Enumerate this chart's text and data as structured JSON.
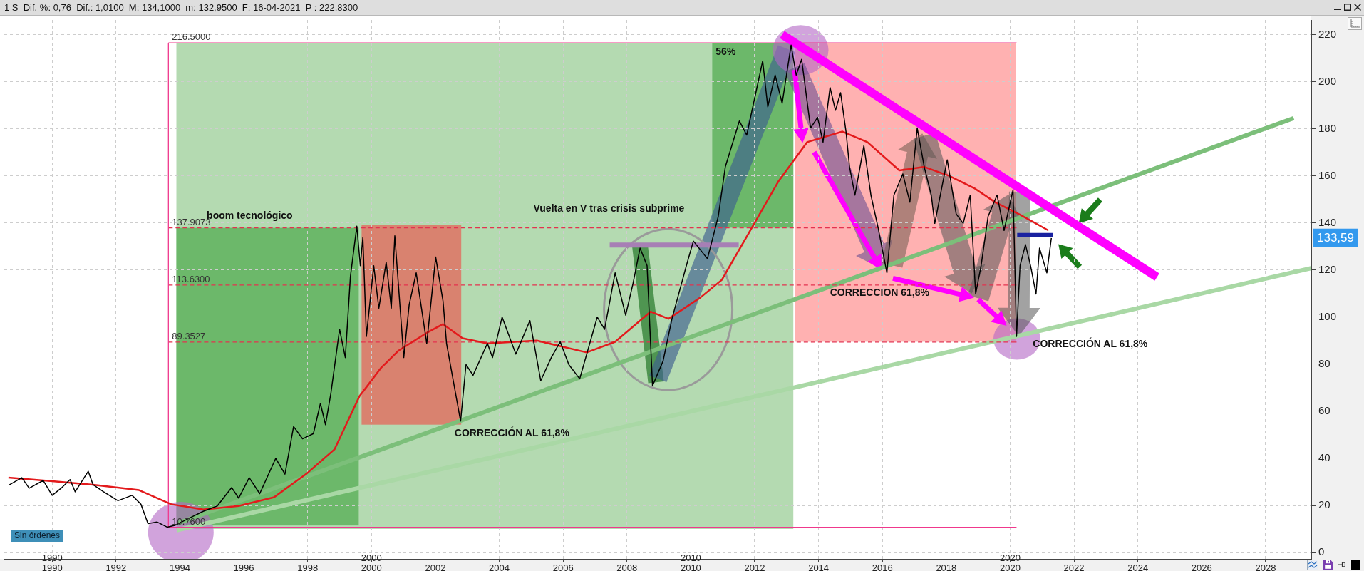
{
  "chart_data": {
    "type": "line",
    "title": "1 S  Dif. %: 0,76  Dif.: 1,0100  M: 134,1000  m: 132,9500  F: 16-04-2021  P : 222,8300",
    "xlim": [
      1988.5,
      2029.43
    ],
    "xticks": [
      1990,
      1992,
      1994,
      1996,
      1998,
      2000,
      2002,
      2004,
      2006,
      2008,
      2010,
      2012,
      2014,
      2016,
      2018,
      2020,
      2022,
      2024,
      2026,
      2028
    ],
    "x2lim": [
      1988.5,
      2029.43
    ],
    "x2ticks": [
      1990,
      2000,
      2010,
      2020
    ],
    "ylim": [
      -2.7,
      226.2
    ],
    "yticks": [
      0,
      20,
      40,
      60,
      80,
      100,
      120,
      140,
      160,
      180,
      200,
      220
    ],
    "grid": true,
    "series": [
      {
        "x": [
          1993.9,
          2029.43
        ],
        "values": [
          9.5,
          120.8
        ],
        "color": "#a9d8a5"
      },
      {
        "x": [
          1993.93,
          2028.88
        ],
        "values": [
          12.4,
          184.5
        ],
        "color": "#7cbf7a"
      },
      {
        "name": "216.5000",
        "x": [
          1993.64,
          2020.2
        ],
        "values": [
          216.5,
          216.5
        ],
        "color": "#f0388c"
      },
      {
        "name": "137.9073",
        "x": [
          1993.64,
          2020.2
        ],
        "values": [
          137.9073,
          137.9073
        ],
        "color": "#e3324f",
        "line_style": "dashed"
      },
      {
        "name": "113.6300",
        "x": [
          1993.64,
          2020.2
        ],
        "values": [
          113.63,
          113.63
        ],
        "color": "#e3324f",
        "line_style": "dashed"
      },
      {
        "name": "89.3527",
        "x": [
          1993.64,
          2020.2
        ],
        "values": [
          89.3527,
          89.3527
        ],
        "color": "#e3324f",
        "line_style": "dashed"
      },
      {
        "name": "10.7600",
        "x": [
          1993.64,
          2020.2
        ],
        "values": [
          10.76,
          10.76
        ],
        "color": "#f0388c"
      },
      {
        "x": [
          1993.64,
          1993.64
        ],
        "values": [
          10.76,
          216.5
        ],
        "color": "#f0388c"
      },
      {
        "x": [
          1988.63,
          1990.0,
          1991.28,
          1992.72,
          1993.73,
          1994.73,
          1995.84,
          1996.95,
          1997.95,
          1998.84,
          1999.62,
          2000.29,
          2000.85,
          2001.73,
          2002.24,
          2002.85,
          2003.63,
          2005.18,
          2006.74,
          2007.63,
          2008.74,
          2009.3,
          2010.3,
          2010.97,
          2011.86,
          2012.75,
          2013.64,
          2014.75,
          2015.53,
          2016.53,
          2017.31,
          2018.09,
          2018.87,
          2019.53,
          2020.31,
          2021.2
        ],
        "values": [
          31.8,
          30.3,
          28.8,
          26.5,
          20.5,
          18.3,
          19.8,
          23.5,
          33.3,
          43.8,
          66.3,
          78.3,
          85.8,
          93.3,
          97.0,
          91.0,
          88.8,
          90.0,
          85.0,
          89.5,
          102.3,
          99.3,
          108.3,
          115.8,
          136.8,
          157.8,
          174.3,
          178.8,
          174.3,
          162.3,
          163.8,
          160.0,
          154.8,
          148.8,
          143.5,
          136.8
        ],
        "color": "#e31a1c"
      },
      {
        "x": [
          2007.46,
          2011.5
        ],
        "values": [
          130.6,
          130.6
        ],
        "color": "#a77fb5"
      },
      {
        "x": [
          2020.22,
          2021.35
        ],
        "values": [
          134.8,
          134.8
        ],
        "color": "#1a22a0"
      },
      {
        "x": [
          2012.86,
          2024.6
        ],
        "values": [
          220,
          117
        ],
        "color": "#ff00ff"
      },
      {
        "x": [
          1988.63,
          1989.05,
          1989.28,
          1989.72,
          1990.0,
          1990.28,
          1990.56,
          1990.72,
          1991.13,
          1991.28,
          1991.61,
          1992.06,
          1992.5,
          1992.78,
          1993.0,
          1993.28,
          1993.6,
          1993.84,
          1994.28,
          1994.73,
          1995.17,
          1995.62,
          1995.84,
          1996.17,
          1996.5,
          1997.0,
          1997.29,
          1997.56,
          1997.84,
          1998.18,
          1998.4,
          1998.56,
          1998.73,
          1999.0,
          1999.18,
          1999.34,
          1999.54,
          1999.65,
          1999.73,
          1999.84,
          2000.07,
          2000.23,
          2000.46,
          2000.62,
          2000.73,
          2001.01,
          2001.18,
          2001.4,
          2001.73,
          2002.01,
          2002.24,
          2002.35,
          2002.57,
          2002.79,
          2002.96,
          2003.18,
          2003.63,
          2003.79,
          2004.09,
          2004.52,
          2004.96,
          2005.3,
          2005.63,
          2005.91,
          2006.18,
          2006.52,
          2007.07,
          2007.3,
          2007.63,
          2007.96,
          2008.19,
          2008.41,
          2008.63,
          2008.8,
          2009.13,
          2009.41,
          2009.86,
          2010.08,
          2010.52,
          2010.86,
          2011.08,
          2011.52,
          2011.75,
          2012.25,
          2012.41,
          2012.64,
          2012.86,
          2013.14,
          2013.3,
          2013.47,
          2013.75,
          2013.97,
          2014.14,
          2014.36,
          2014.53,
          2014.69,
          2014.86,
          2014.97,
          2015.14,
          2015.42,
          2015.64,
          2015.86,
          2016.14,
          2016.36,
          2016.64,
          2016.86,
          2017.09,
          2017.31,
          2017.53,
          2017.64,
          2018.03,
          2018.31,
          2018.53,
          2018.75,
          2018.92,
          2019.09,
          2019.31,
          2019.59,
          2019.81,
          2020.09,
          2020.2,
          2020.31,
          2020.48,
          2020.64,
          2020.81,
          2020.92,
          2021.15,
          2021.29
        ],
        "values": [
          28.5,
          31.8,
          27.3,
          30.6,
          24.3,
          27.3,
          31.0,
          25.8,
          34.5,
          28.8,
          25.8,
          22.0,
          24.3,
          20.5,
          12.3,
          13.0,
          10.8,
          11.5,
          14.5,
          17.5,
          19.8,
          27.6,
          23.1,
          31.8,
          25.0,
          40.0,
          33.3,
          53.5,
          48.3,
          50.5,
          63.3,
          54.3,
          67.8,
          94.8,
          82.8,
          117.3,
          138.6,
          121.8,
          133.8,
          91.8,
          121.8,
          103.8,
          123.3,
          103.8,
          134.5,
          82.8,
          105.3,
          118.8,
          88.8,
          125.5,
          106.8,
          88.8,
          72.3,
          55.8,
          79.8,
          75.3,
          88.8,
          82.8,
          100.0,
          84.3,
          98.5,
          73.0,
          82.8,
          89.5,
          79.8,
          73.8,
          100.0,
          94.8,
          118.8,
          100.8,
          114.3,
          129.3,
          121.8,
          70.8,
          81.3,
          99.3,
          121.8,
          132.3,
          124.8,
          142.8,
          163.8,
          183.3,
          177.3,
          208.8,
          189.3,
          202.8,
          190.8,
          215.5,
          202.8,
          209.5,
          180.3,
          184.8,
          174.3,
          197.5,
          187.8,
          195.3,
          178.8,
          163.8,
          151.8,
          172.8,
          151.8,
          138.3,
          118.8,
          151.8,
          160.8,
          148.8,
          180.3,
          163.8,
          151.8,
          139.8,
          166.8,
          143.8,
          139.8,
          151.8,
          109.8,
          121.8,
          142.8,
          151.8,
          136.8,
          154.0,
          91.8,
          121.8,
          130.8,
          121.8,
          109.8,
          129.3,
          118.8,
          133.6
        ],
        "color": "#000000"
      }
    ],
    "annotations": [
      "boom tecnológico",
      "Vuelta en V tras crisis subprime",
      "56%",
      "CORRECCIÓN AL 61,8%",
      "CORRECCION 61,8%",
      "CORRECCIÓN AL 61,8%",
      "133,59",
      "Sin órdenes"
    ]
  }
}
